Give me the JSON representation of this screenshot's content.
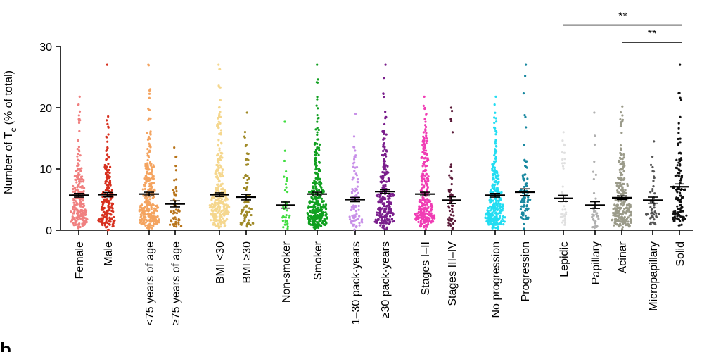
{
  "chart_data": {
    "type": "scatter",
    "title": "",
    "ylabel": "Number of T c (% of total)",
    "ylabel_main": "Number of T",
    "ylabel_sub": "c",
    "ylabel_tail": "(% of total)",
    "ylim": [
      0,
      30
    ],
    "yticks": [
      "0",
      "10",
      "20",
      "30"
    ],
    "categories": [
      {
        "label": "Female",
        "color": "#f08080",
        "mean": 5.7,
        "sem": 0.3,
        "n": 230,
        "max": 21.8
      },
      {
        "label": "Male",
        "color": "#d7301f",
        "mean": 5.8,
        "sem": 0.35,
        "n": 200,
        "max": 27.0
      },
      {
        "label": "<75 years of age",
        "color": "#f4a460",
        "mean": 5.9,
        "sem": 0.3,
        "n": 300,
        "max": 27.0
      },
      {
        "label": "≥75 years of age",
        "color": "#b8741a",
        "mean": 4.3,
        "sem": 0.5,
        "n": 50,
        "max": 13.5
      },
      {
        "label": "BMI <30",
        "color": "#f5d78e",
        "mean": 5.8,
        "sem": 0.3,
        "n": 300,
        "max": 27.0
      },
      {
        "label": "BMI ≥30",
        "color": "#a08a28",
        "mean": 5.4,
        "sem": 0.45,
        "n": 80,
        "max": 19.2
      },
      {
        "label": "Non-smoker",
        "color": "#40dd40",
        "mean": 4.1,
        "sem": 0.5,
        "n": 40,
        "max": 17.7
      },
      {
        "label": "Smoker",
        "color": "#10a020",
        "mean": 5.9,
        "sem": 0.3,
        "n": 320,
        "max": 27.0
      },
      {
        "label": "1–30 pack-years",
        "color": "#c890e8",
        "mean": 5.0,
        "sem": 0.35,
        "n": 90,
        "max": 19.0
      },
      {
        "label": "≥30 pack-years",
        "color": "#7a1e8c",
        "mean": 6.3,
        "sem": 0.3,
        "n": 250,
        "max": 27.0
      },
      {
        "label": "Stages I–II",
        "color": "#f03cb4",
        "mean": 5.9,
        "sem": 0.3,
        "n": 280,
        "max": 21.8
      },
      {
        "label": "Stages III–IV",
        "color": "#5a1a38",
        "mean": 4.9,
        "sem": 0.55,
        "n": 50,
        "max": 20.0
      },
      {
        "label": "No progression",
        "color": "#22ddf2",
        "mean": 5.7,
        "sem": 0.3,
        "n": 280,
        "max": 21.8
      },
      {
        "label": "Progression",
        "color": "#1888a0",
        "mean": 6.2,
        "sem": 0.55,
        "n": 80,
        "max": 27.0
      },
      {
        "label": "Lepidic",
        "color": "#e0e0e0",
        "mean": 5.2,
        "sem": 0.5,
        "n": 40,
        "max": 16.0
      },
      {
        "label": "Papillary",
        "color": "#b0b0b0",
        "mean": 4.1,
        "sem": 0.55,
        "n": 35,
        "max": 19.2
      },
      {
        "label": "Acinar",
        "color": "#9b9b8a",
        "mean": 5.3,
        "sem": 0.3,
        "n": 250,
        "max": 20.2
      },
      {
        "label": "Micropapillary",
        "color": "#555555",
        "mean": 4.9,
        "sem": 0.5,
        "n": 50,
        "max": 14.5
      },
      {
        "label": "Solid",
        "color": "#111111",
        "mean": 7.1,
        "sem": 0.45,
        "n": 120,
        "max": 27.0
      }
    ],
    "significance": [
      {
        "from": "Lepidic",
        "to": "Solid",
        "label": "**",
        "y": 33.5
      },
      {
        "from": "Acinar",
        "to": "Solid",
        "label": "**",
        "y": 30.7
      }
    ],
    "grid": false,
    "legend": "none"
  },
  "panel_letter": "b"
}
